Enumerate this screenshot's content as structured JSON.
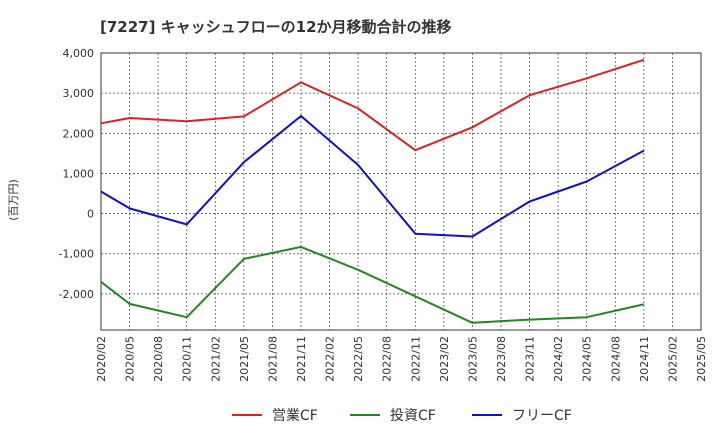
{
  "chart_data": {
    "type": "line",
    "title": "[7227]  キャッシュフローの12か月移動合計の推移",
    "ylabel": "(百万円)",
    "xlabel": "",
    "ylim": [
      -2900,
      4000
    ],
    "yticks": [
      4000,
      3000,
      2000,
      1000,
      0,
      -1000,
      -2000
    ],
    "ytick_labels": [
      "4,000",
      "3,000",
      "2,000",
      "1,000",
      "0",
      "-1,000",
      "-2,000"
    ],
    "x_labels": [
      "2020/02",
      "2020/05",
      "2020/08",
      "2020/11",
      "2021/02",
      "2021/05",
      "2021/08",
      "2021/11",
      "2022/02",
      "2022/05",
      "2022/08",
      "2022/11",
      "2023/02",
      "2023/05",
      "2023/08",
      "2023/11",
      "2024/02",
      "2024/05",
      "2024/08",
      "2024/11",
      "2025/02",
      "2025/05"
    ],
    "grid": true,
    "legend_position": "bottom",
    "series": [
      {
        "name": "営業CF",
        "color": "#dd2222",
        "points": [
          {
            "x": "2020/02",
            "y": 2250
          },
          {
            "x": "2020/05",
            "y": 2380
          },
          {
            "x": "2020/11",
            "y": 2300
          },
          {
            "x": "2021/05",
            "y": 2420
          },
          {
            "x": "2021/11",
            "y": 3270
          },
          {
            "x": "2022/05",
            "y": 2620
          },
          {
            "x": "2022/11",
            "y": 1580
          },
          {
            "x": "2023/05",
            "y": 2150
          },
          {
            "x": "2023/11",
            "y": 2950
          },
          {
            "x": "2024/05",
            "y": 3370
          },
          {
            "x": "2024/11",
            "y": 3830
          }
        ]
      },
      {
        "name": "投資CF",
        "color": "#228822",
        "points": [
          {
            "x": "2020/02",
            "y": -1700
          },
          {
            "x": "2020/05",
            "y": -2250
          },
          {
            "x": "2020/11",
            "y": -2580
          },
          {
            "x": "2021/05",
            "y": -1130
          },
          {
            "x": "2021/11",
            "y": -830
          },
          {
            "x": "2022/05",
            "y": -1400
          },
          {
            "x": "2022/11",
            "y": -2060
          },
          {
            "x": "2023/05",
            "y": -2720
          },
          {
            "x": "2023/11",
            "y": -2640
          },
          {
            "x": "2024/05",
            "y": -2580
          },
          {
            "x": "2024/11",
            "y": -2260
          }
        ]
      },
      {
        "name": "フリーCF",
        "color": "#1111cc",
        "points": [
          {
            "x": "2020/02",
            "y": 550
          },
          {
            "x": "2020/05",
            "y": 130
          },
          {
            "x": "2020/11",
            "y": -270
          },
          {
            "x": "2021/05",
            "y": 1280
          },
          {
            "x": "2021/11",
            "y": 2430
          },
          {
            "x": "2022/05",
            "y": 1210
          },
          {
            "x": "2022/11",
            "y": -500
          },
          {
            "x": "2023/05",
            "y": -570
          },
          {
            "x": "2023/11",
            "y": 300
          },
          {
            "x": "2024/05",
            "y": 800
          },
          {
            "x": "2024/11",
            "y": 1570
          }
        ]
      }
    ]
  }
}
